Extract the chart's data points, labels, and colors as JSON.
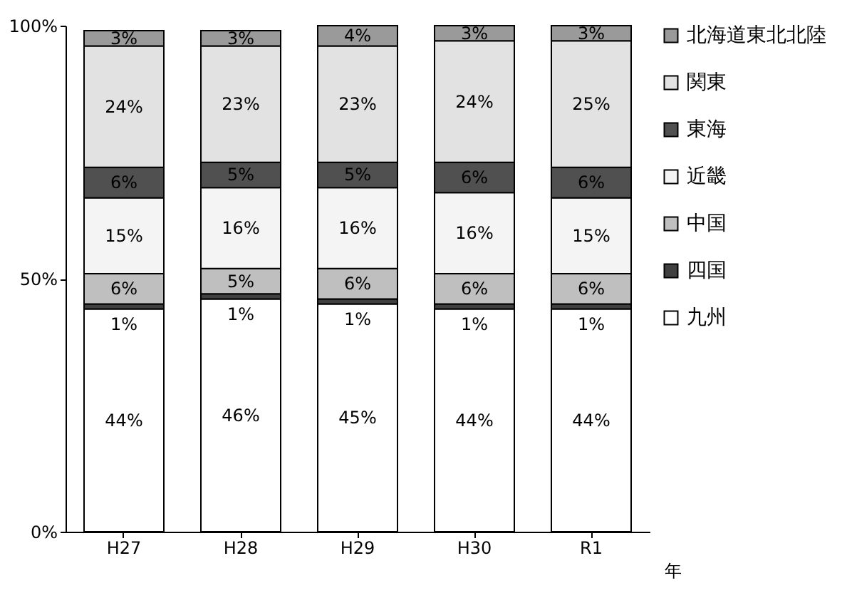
{
  "chart_data": {
    "type": "bar",
    "stacked": true,
    "xlabel": "年",
    "categories": [
      "H27",
      "H28",
      "H29",
      "H30",
      "R1"
    ],
    "ylim": [
      0,
      100
    ],
    "yticks": [
      {
        "value": 0,
        "label": "0%"
      },
      {
        "value": 50,
        "label": "50%"
      },
      {
        "value": 100,
        "label": "100%"
      }
    ],
    "grid": false,
    "legend": "right",
    "series": [
      {
        "name": "九州",
        "color": "#ffffff",
        "values": [
          44,
          46,
          45,
          44,
          44
        ],
        "value_labels": [
          "44%",
          "46%",
          "45%",
          "44%",
          "44%"
        ]
      },
      {
        "name": "四国",
        "color": "#404040",
        "values": [
          1,
          1,
          1,
          1,
          1
        ],
        "value_labels": [
          "1%",
          "1%",
          "1%",
          "1%",
          "1%"
        ]
      },
      {
        "name": "中国",
        "color": "#bfbfbf",
        "values": [
          6,
          5,
          6,
          6,
          6
        ],
        "value_labels": [
          "6%",
          "5%",
          "6%",
          "6%",
          "6%"
        ]
      },
      {
        "name": "近畿",
        "color": "#f4f4f4",
        "values": [
          15,
          16,
          16,
          16,
          15
        ],
        "value_labels": [
          "15%",
          "16%",
          "16%",
          "16%",
          "15%"
        ]
      },
      {
        "name": "東海",
        "color": "#505050",
        "values": [
          6,
          5,
          5,
          6,
          6
        ],
        "value_labels": [
          "6%",
          "5%",
          "5%",
          "6%",
          "6%"
        ]
      },
      {
        "name": "関東",
        "color": "#e2e2e2",
        "values": [
          24,
          23,
          23,
          24,
          25
        ],
        "value_labels": [
          "24%",
          "23%",
          "23%",
          "24%",
          "25%"
        ]
      },
      {
        "name": "北海道東北北陸",
        "color": "#9a9a9a",
        "values": [
          3,
          3,
          4,
          3,
          3
        ],
        "value_labels": [
          "3%",
          "3%",
          "4%",
          "3%",
          "3%"
        ]
      }
    ]
  }
}
